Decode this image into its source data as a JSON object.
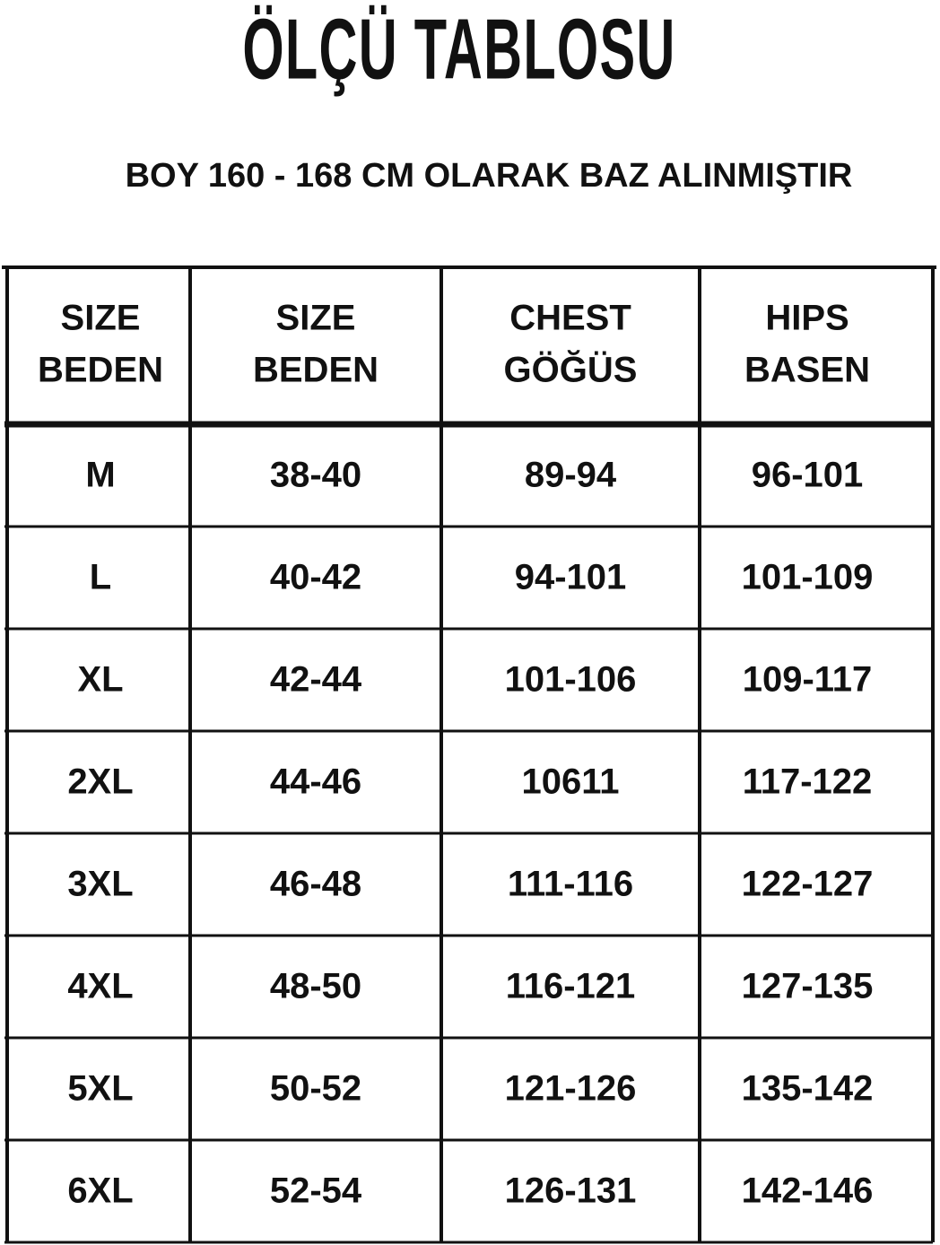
{
  "header": {
    "title": "ÖLÇÜ TABLOSU",
    "subtitle": "BOY 160 - 168 CM OLARAK BAZ ALINMIŞTIR"
  },
  "table": {
    "headers": [
      [
        "SIZE",
        "BEDEN"
      ],
      [
        "SIZE",
        "BEDEN"
      ],
      [
        "CHEST",
        "GÖĞÜS"
      ],
      [
        "HIPS",
        "BASEN"
      ]
    ],
    "rows": [
      [
        "M",
        "38-40",
        "89-94",
        "96-101"
      ],
      [
        "L",
        "40-42",
        "94-101",
        "101-109"
      ],
      [
        "XL",
        "42-44",
        "101-106",
        "109-117"
      ],
      [
        "2XL",
        "44-46",
        "10611",
        "117-122"
      ],
      [
        "3XL",
        "46-48",
        "111-116",
        "122-127"
      ],
      [
        "4XL",
        "48-50",
        "116-121",
        "127-135"
      ],
      [
        "5XL",
        "50-52",
        "121-126",
        "135-142"
      ],
      [
        "6XL",
        "52-54",
        "126-131",
        "142-146"
      ]
    ]
  }
}
